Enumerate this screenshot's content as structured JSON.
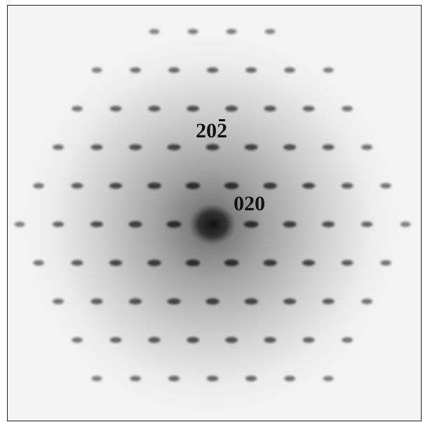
{
  "image": {
    "background": "#f3f3f3",
    "spot_color": "#1a1a1a",
    "halo_color": "#7a7a7a",
    "description_type": "diffraction-pattern"
  },
  "labels": {
    "index_a_prefix": "20",
    "index_a_barred_digit": "2",
    "index_b": "020"
  }
}
